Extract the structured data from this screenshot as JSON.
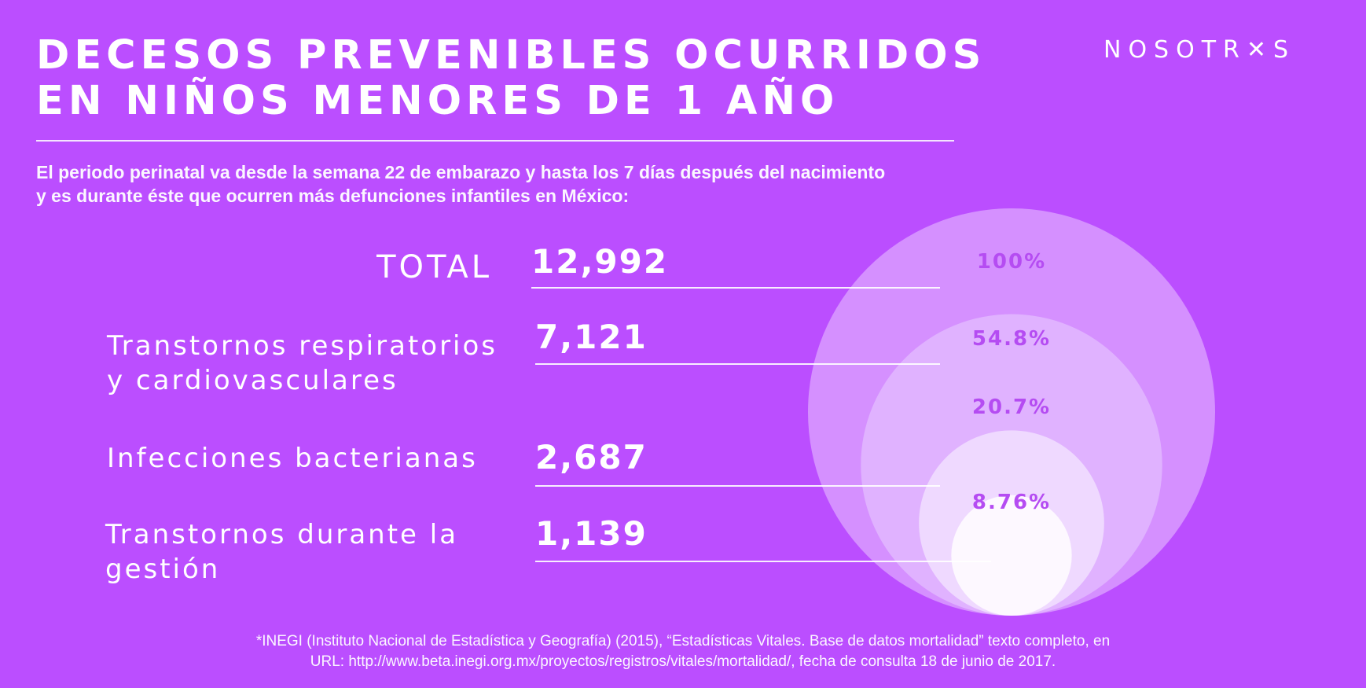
{
  "title": {
    "line1": "DECESOS PREVENIBLES OCURRIDOS",
    "line2": "EN NIÑOS MENORES DE 1 AÑO"
  },
  "logo": "NOSOTR✕S",
  "intro": {
    "line1": "El periodo perinatal va desde la semana 22 de embarazo y hasta los 7 días después del nacimiento",
    "line2": "y es durante éste que ocurren más defunciones infantiles en México:"
  },
  "rows": [
    {
      "label": [
        "TOTAL"
      ],
      "value": "12,992"
    },
    {
      "label": [
        "Transtornos respiratorios",
        "y cardiovasculares"
      ],
      "value": "7,121"
    },
    {
      "label": [
        "Infecciones bacterianas"
      ],
      "value": "2,687"
    },
    {
      "label": [
        "Transtornos durante la",
        "gestión"
      ],
      "value": "1,139"
    }
  ],
  "chart_data": {
    "type": "nested-circles",
    "categories": [
      "TOTAL",
      "Transtornos respiratorios y cardiovasculares",
      "Infecciones bacterianas",
      "Transtornos durante la gestión"
    ],
    "values": [
      12992,
      7121,
      2687,
      1139
    ],
    "percent_labels": [
      "100%",
      "54.8%",
      "20.7%",
      "8.76%"
    ],
    "percents": [
      100,
      54.8,
      20.7,
      8.76
    ],
    "circle_colors": [
      "#d590ff",
      "#e0b2ff",
      "#efd9ff",
      "#fdf8ff"
    ]
  },
  "footnote": {
    "line1": "*INEGI (Instituto Nacional de Estadística y Geografía) (2015), “Estadísticas Vitales. Base de datos mortalidad” texto completo, en",
    "line2": "URL: http://www.beta.inegi.org.mx/proyectos/registros/vitales/mortalidad/, fecha de consulta 18 de junio de 2017."
  }
}
